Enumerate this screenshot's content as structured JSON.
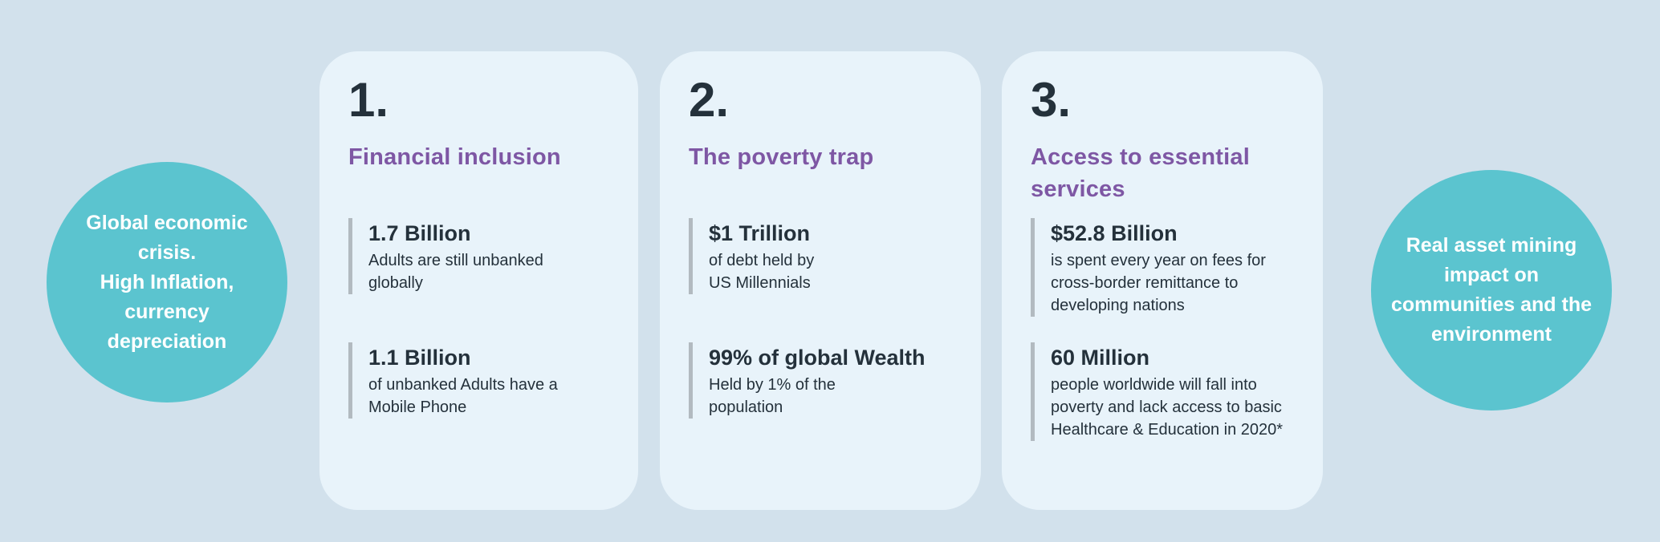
{
  "colors": {
    "background": "#d2e1ec",
    "card_background": "#e8f3fa",
    "circle_teal": "#5bc4cf",
    "heading_purple": "#7e57a4",
    "text_dark": "#24313b",
    "stat_bar_gray": "#b2bac0",
    "circle_text": "#ffffff"
  },
  "left_circle": {
    "text": "Global economic\ncrisis.\nHigh Inflation,\ncurrency\ndepreciation"
  },
  "right_circle": {
    "text": "Real asset  mining\nimpact on\ncommunities and the\nenvironment"
  },
  "cards": [
    {
      "number": "1.",
      "title": "Financial inclusion",
      "stats": [
        {
          "value": "1.7 Billion",
          "description": "Adults are still unbanked\nglobally"
        },
        {
          "value": "1.1 Billion",
          "description": "of unbanked Adults have a\nMobile Phone"
        }
      ]
    },
    {
      "number": "2.",
      "title": "The poverty trap",
      "stats": [
        {
          "value": "$1 Trillion",
          "description": "of debt held by\nUS Millennials"
        },
        {
          "value": "99% of global Wealth",
          "description": "Held by 1% of the\npopulation"
        }
      ]
    },
    {
      "number": "3.",
      "title": "Access to essential\nservices",
      "stats": [
        {
          "value": "$52.8 Billion",
          "description": "is spent every year on fees for\ncross-border remittance to\ndeveloping nations"
        },
        {
          "value": "60 Million",
          "description": "people worldwide will fall into\npoverty and lack access to basic\nHealthcare & Education in 2020*"
        }
      ]
    }
  ]
}
